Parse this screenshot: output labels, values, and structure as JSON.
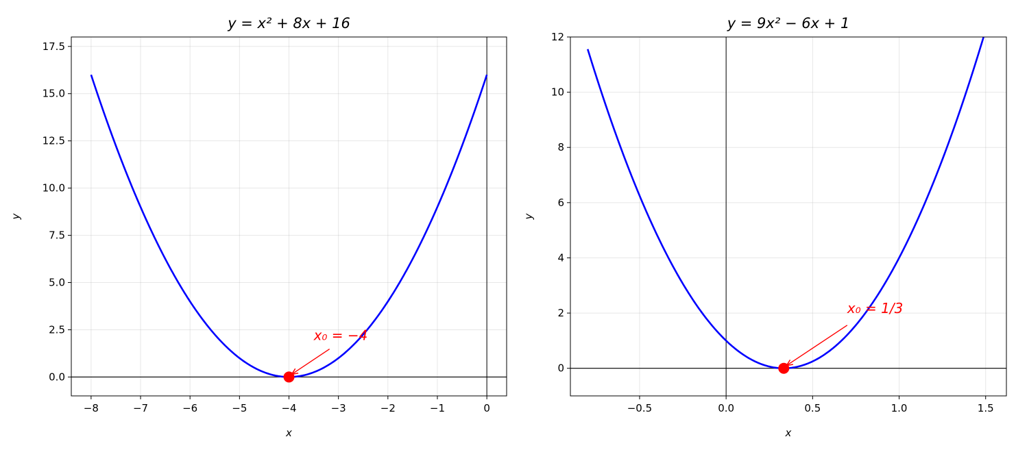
{
  "chart_data": [
    {
      "type": "line",
      "title": "y = x² + 8x + 16",
      "xlabel": "x",
      "ylabel": "y",
      "xlim": [
        -8.4,
        0.4
      ],
      "ylim": [
        -1,
        18
      ],
      "xticks": [
        -8,
        -7,
        -6,
        -5,
        -4,
        -3,
        -2,
        -1,
        0
      ],
      "xtick_labels": [
        "−8",
        "−7",
        "−6",
        "−5",
        "−4",
        "−3",
        "−2",
        "−1",
        "0"
      ],
      "yticks": [
        0,
        2.5,
        5,
        7.5,
        10,
        12.5,
        15,
        17.5
      ],
      "ytick_labels": [
        "0.0",
        "2.5",
        "5.0",
        "7.5",
        "10.0",
        "12.5",
        "15.0",
        "17.5"
      ],
      "grid": true,
      "series": [
        {
          "coeffs": [
            1,
            8,
            16
          ],
          "x_range": [
            -8,
            0
          ],
          "color": "#0000ff"
        }
      ],
      "vertex": {
        "x": -4,
        "y": 0,
        "color": "#ff0000"
      },
      "annotation": {
        "text": "x₀ = −4",
        "xytext": [
          -3.5,
          1.95
        ],
        "arrow_start": [
          -3.18,
          1.48
        ],
        "xy": [
          -4,
          0
        ],
        "color": "#ff0000"
      }
    },
    {
      "type": "line",
      "title": "y = 9x² − 6x + 1",
      "xlabel": "x",
      "ylabel": "y",
      "xlim": [
        -0.9,
        1.62
      ],
      "ylim": [
        -1,
        12
      ],
      "xticks": [
        -0.5,
        0,
        0.5,
        1,
        1.5
      ],
      "xtick_labels": [
        "−0.5",
        "0.0",
        "0.5",
        "1.0",
        "1.5"
      ],
      "yticks": [
        0,
        2,
        4,
        6,
        8,
        10,
        12
      ],
      "ytick_labels": [
        "0",
        "2",
        "4",
        "6",
        "8",
        "10",
        "12"
      ],
      "grid": true,
      "series": [
        {
          "coeffs": [
            9,
            -6,
            1
          ],
          "x_range": [
            -0.8,
            1.5
          ],
          "color": "#0000ff"
        }
      ],
      "vertex": {
        "x": 0.3333,
        "y": 0,
        "color": "#ff0000"
      },
      "annotation": {
        "text": "x₀ = 1/3",
        "xytext": [
          0.7,
          2.0
        ],
        "arrow_start": [
          0.7,
          1.56
        ],
        "xy": [
          0.3333,
          0
        ],
        "color": "#ff0000"
      }
    }
  ]
}
